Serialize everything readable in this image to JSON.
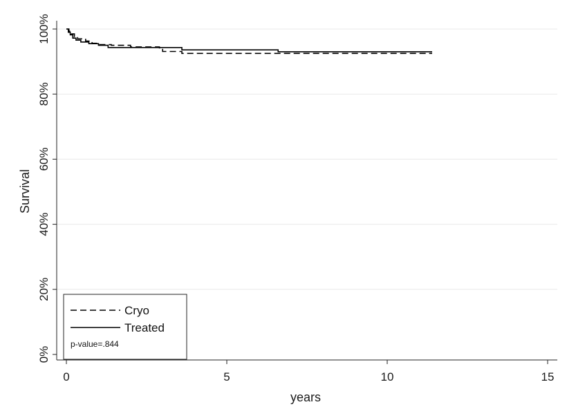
{
  "chart_data": {
    "type": "line",
    "xlabel": "years",
    "ylabel": "Survival",
    "xlim": [
      0,
      15
    ],
    "ylim": [
      0,
      100
    ],
    "x_ticks": [
      0,
      5,
      10,
      15
    ],
    "x_tick_labels": [
      "0",
      "5",
      "10",
      "15"
    ],
    "y_ticks": [
      0,
      20,
      40,
      60,
      80,
      100
    ],
    "y_tick_labels": [
      "0%",
      "20%",
      "40%",
      "60%",
      "80%",
      "100%"
    ],
    "grid": "horizontal",
    "legend_position": "bottom-left",
    "annotation": "p-value=.844",
    "series": [
      {
        "name": "Cryo",
        "line_style": "dashed",
        "color": "#000000",
        "points": [
          [
            0.0,
            100
          ],
          [
            0.08,
            99.3
          ],
          [
            0.15,
            98.5
          ],
          [
            0.25,
            97.6
          ],
          [
            0.35,
            97.0
          ],
          [
            0.6,
            96.3
          ],
          [
            0.8,
            95.6
          ],
          [
            1.0,
            95.2
          ],
          [
            1.4,
            95.0
          ],
          [
            2.0,
            94.5
          ],
          [
            2.9,
            94.2
          ],
          [
            3.0,
            93.1
          ],
          [
            3.6,
            92.5
          ],
          [
            11.4,
            92.5
          ]
        ]
      },
      {
        "name": "Treated",
        "line_style": "solid",
        "color": "#000000",
        "points": [
          [
            0.0,
            100
          ],
          [
            0.06,
            99.0
          ],
          [
            0.12,
            98.2
          ],
          [
            0.2,
            97.2
          ],
          [
            0.3,
            96.6
          ],
          [
            0.45,
            96.0
          ],
          [
            0.7,
            95.5
          ],
          [
            1.0,
            95.0
          ],
          [
            1.3,
            94.3
          ],
          [
            2.4,
            94.3
          ],
          [
            3.6,
            93.6
          ],
          [
            6.6,
            93.0
          ],
          [
            11.4,
            93.0
          ]
        ]
      }
    ]
  }
}
